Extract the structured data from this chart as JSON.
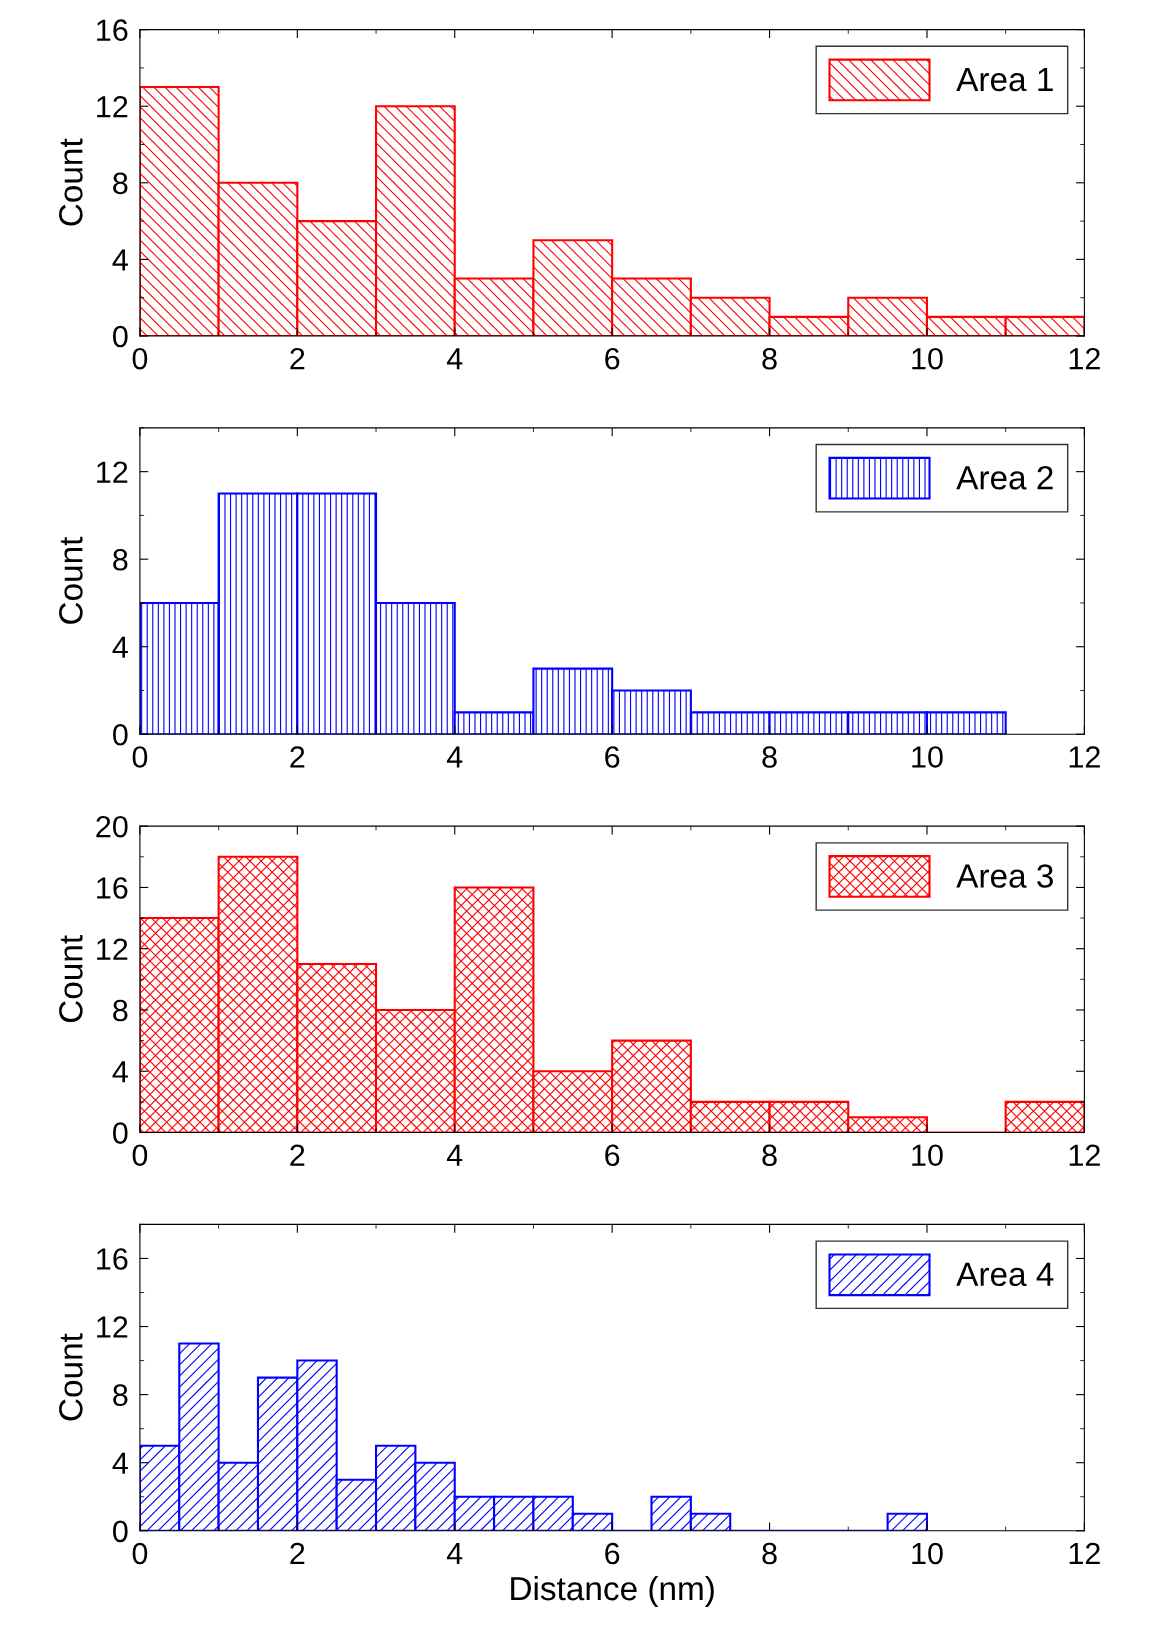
{
  "chart_data": [
    {
      "type": "histogram",
      "ylabel": "Count",
      "bins": [
        0,
        1,
        2,
        3,
        4,
        5,
        6,
        7,
        8,
        9,
        10,
        11,
        12
      ],
      "series": [
        {
          "name": "Area 1",
          "color": "#ff0000",
          "values": [
            13,
            8,
            6,
            12,
            3,
            5,
            3,
            2,
            1,
            2,
            1,
            1
          ]
        }
      ],
      "xlim": [
        0,
        12
      ],
      "xticks": [
        0,
        2,
        4,
        6,
        8,
        10,
        12
      ],
      "ylim": [
        0,
        16
      ],
      "yticks": [
        0,
        4,
        8,
        12,
        16
      ],
      "legend": "top right",
      "grid": false
    },
    {
      "type": "histogram",
      "ylabel": "Count",
      "bins": [
        0,
        1,
        2,
        3,
        4,
        5,
        6,
        7,
        8,
        9,
        10,
        11
      ],
      "series": [
        {
          "name": "Area 2",
          "color": "#0000ff",
          "values": [
            6,
            11,
            11,
            6,
            1,
            3,
            2,
            1,
            1,
            1,
            1
          ]
        }
      ],
      "xlim": [
        0,
        12
      ],
      "xticks": [
        0,
        2,
        4,
        6,
        8,
        10,
        12
      ],
      "ylim": [
        0,
        14
      ],
      "yticks": [
        0,
        4,
        8,
        12
      ],
      "legend": "top right",
      "grid": false
    },
    {
      "type": "histogram",
      "ylabel": "Count",
      "bins": [
        0,
        1,
        2,
        3,
        4,
        5,
        6,
        7,
        8,
        9,
        10,
        11,
        12
      ],
      "series": [
        {
          "name": "Area 3",
          "color": "#ff0000",
          "values": [
            14,
            18,
            11,
            8,
            16,
            4,
            6,
            2,
            2,
            1,
            0,
            2
          ]
        }
      ],
      "xlim": [
        0,
        12
      ],
      "xticks": [
        0,
        2,
        4,
        6,
        8,
        10,
        12
      ],
      "ylim": [
        0,
        20
      ],
      "yticks": [
        0,
        4,
        8,
        12,
        16,
        20
      ],
      "legend": "top right",
      "grid": false
    },
    {
      "type": "histogram",
      "ylabel": "Count",
      "xlabel": "Distance (nm)",
      "bins": [
        0,
        0.5,
        1,
        1.5,
        2,
        2.5,
        3,
        3.5,
        4,
        4.5,
        5,
        5.5,
        6,
        6.5,
        7,
        7.5,
        8,
        8.5,
        9,
        9.5,
        10
      ],
      "series": [
        {
          "name": "Area 4",
          "color": "#0000ff",
          "values": [
            5,
            11,
            4,
            9,
            10,
            3,
            5,
            4,
            2,
            2,
            2,
            1,
            0,
            2,
            1,
            0,
            0,
            0,
            0,
            1
          ]
        }
      ],
      "xlim": [
        0,
        12
      ],
      "xticks": [
        0,
        2,
        4,
        6,
        8,
        10,
        12
      ],
      "ylim": [
        0,
        18
      ],
      "yticks": [
        0,
        4,
        8,
        12,
        16
      ],
      "legend": "top right",
      "grid": false
    }
  ]
}
